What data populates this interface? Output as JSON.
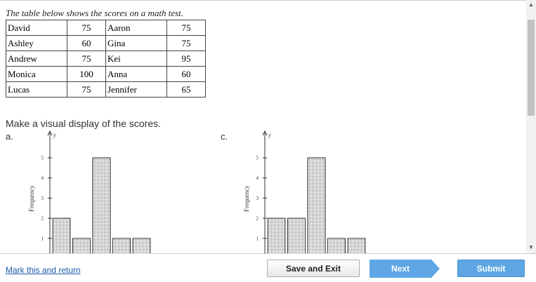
{
  "prompt": "The table below shows the scores on a math test.",
  "table": {
    "rows": [
      [
        "David",
        75,
        "Aaron",
        75
      ],
      [
        "Ashley",
        60,
        "Gina",
        75
      ],
      [
        "Andrew",
        75,
        "Kei",
        95
      ],
      [
        "Monica",
        100,
        "Anna",
        60
      ],
      [
        "Lucas",
        75,
        "Jennifer",
        65
      ]
    ]
  },
  "instruction": "Make a visual display of the scores.",
  "options": [
    {
      "label": "a.",
      "y_axis_label": "y",
      "y_title": "Frequency",
      "yticks": [
        1,
        2,
        3,
        4,
        5
      ],
      "values": [
        2,
        1,
        5,
        1,
        1
      ]
    },
    {
      "label": "c.",
      "y_axis_label": "y",
      "y_title": "Frequency",
      "yticks": [
        1,
        2,
        3,
        4,
        5
      ],
      "values": [
        2,
        2,
        5,
        1,
        1
      ]
    }
  ],
  "footer": {
    "mark_link": "Mark this and return",
    "save": "Save and Exit",
    "next": "Next",
    "submit": "Submit"
  }
}
